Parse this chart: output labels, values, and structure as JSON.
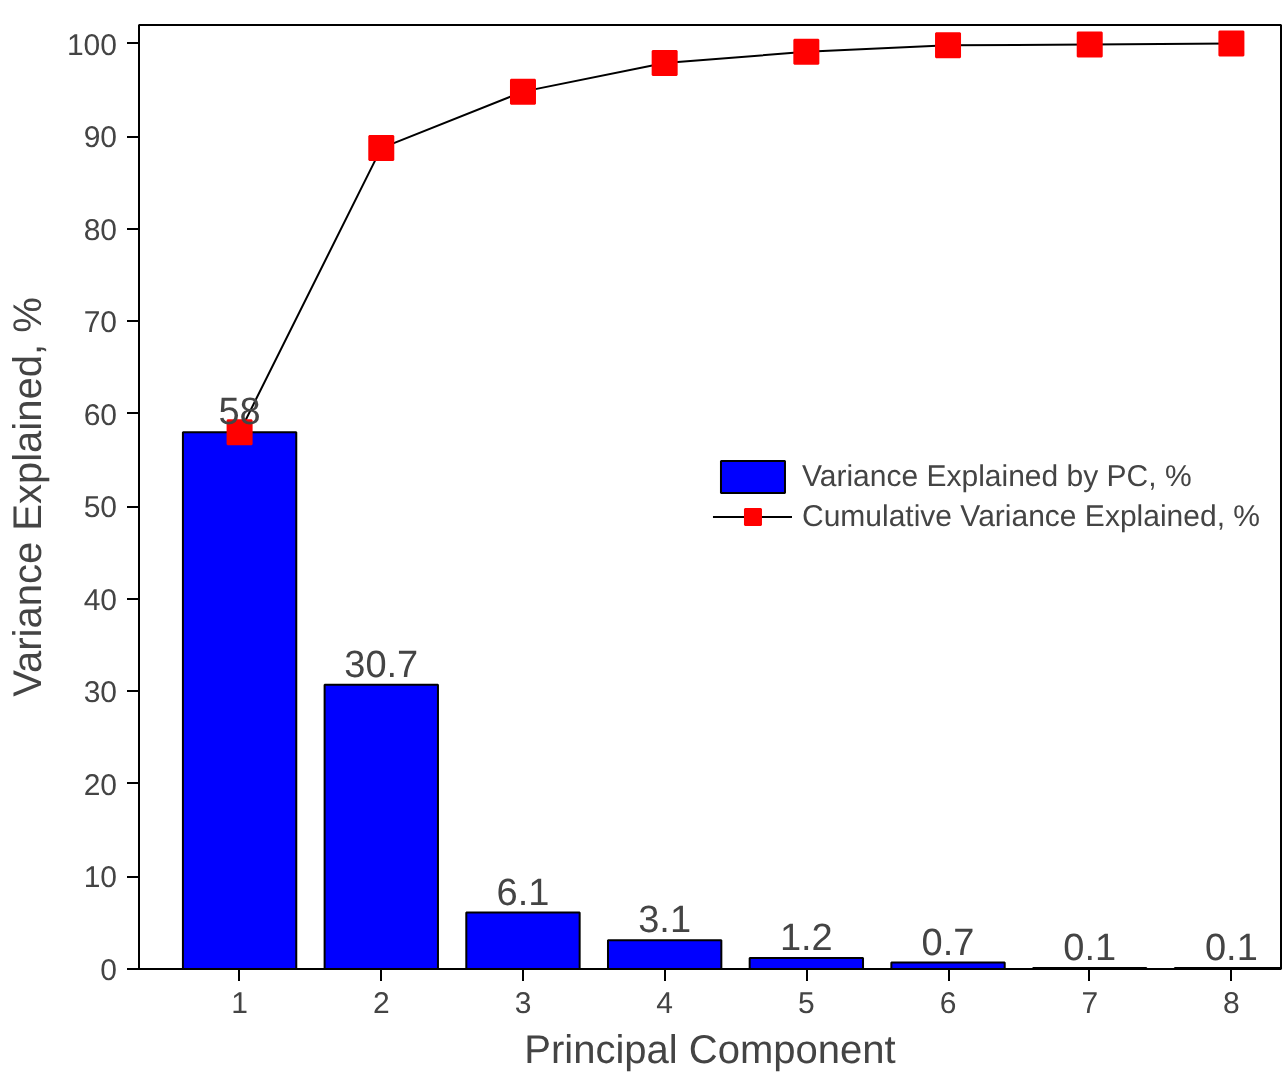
{
  "chart_data": {
    "type": "bar",
    "xlabel": "Principal Component",
    "ylabel": "Variance Explained, %",
    "x": [
      1,
      2,
      3,
      4,
      5,
      6,
      7,
      8
    ],
    "xlim": [
      0.29,
      8.35
    ],
    "xticks": [
      1,
      2,
      3,
      4,
      5,
      6,
      7,
      8
    ],
    "ylim": [
      0,
      102
    ],
    "yticks": [
      0,
      10,
      20,
      30,
      40,
      50,
      60,
      70,
      80,
      90,
      100
    ],
    "series": [
      {
        "name": "Variance Explained by PC, %",
        "color": "#0000ff",
        "values": [
          58,
          30.7,
          6.1,
          3.1,
          1.2,
          0.7,
          0.1,
          0.1
        ],
        "value_labels": [
          "58",
          "30.7",
          "6.1",
          "3.1",
          "1.2",
          "0.7",
          "0.1",
          "0.1"
        ]
      },
      {
        "name": "Cumulative Variance Explained, %",
        "type": "line",
        "color": "#ff0000",
        "values": [
          58,
          88.7,
          94.8,
          97.9,
          99.1,
          99.8,
          99.9,
          100
        ],
        "marker": "square"
      }
    ],
    "legend": "right",
    "grid": false
  }
}
